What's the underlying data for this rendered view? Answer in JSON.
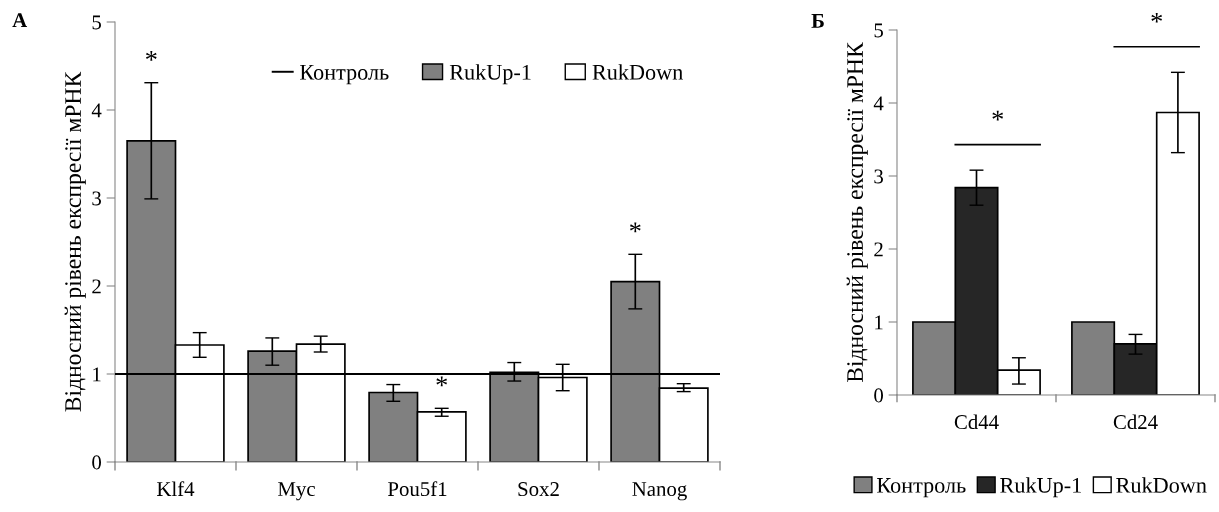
{
  "chart_data": [
    {
      "type": "bar",
      "title": "А",
      "ylabel": "Відносний рівень експресії мРНК",
      "categories": [
        "Klf4",
        "Myc",
        "Pou5f1",
        "Sox2",
        "Nanog"
      ],
      "series": [
        {
          "name": "RukUp-1",
          "color": "#808080",
          "values": [
            3.65,
            1.26,
            0.79,
            1.02,
            2.05
          ],
          "errors": [
            [
              2.99,
              4.31
            ],
            [
              1.1,
              1.41
            ],
            [
              0.69,
              0.88
            ],
            [
              0.92,
              1.13
            ],
            [
              1.74,
              2.36
            ]
          ]
        },
        {
          "name": "RukDown",
          "color": "#ffffff",
          "values": [
            1.33,
            1.34,
            0.57,
            0.96,
            0.84
          ],
          "errors": [
            [
              1.19,
              1.47
            ],
            [
              1.25,
              1.43
            ],
            [
              0.52,
              0.61
            ],
            [
              0.81,
              1.11
            ],
            [
              0.8,
              0.89
            ]
          ]
        }
      ],
      "ref_lines": [
        {
          "axis": "y",
          "value": 1,
          "label": "Контроль",
          "color": "#000000",
          "line_style": "solid"
        }
      ],
      "annotations": [
        "*",
        "*",
        "*"
      ],
      "ylim": [
        0,
        5
      ],
      "yticks": [
        0,
        1,
        2,
        3,
        4,
        5
      ],
      "grid": false,
      "legend": "top"
    },
    {
      "type": "bar",
      "title": "Б",
      "ylabel": "Відносний рівень експресії мРНК",
      "categories": [
        "Cd44",
        "Cd24"
      ],
      "series": [
        {
          "name": "Контроль",
          "color": "#808080",
          "values": [
            1,
            1
          ]
        },
        {
          "name": "RukUp-1",
          "color": "#262626",
          "values": [
            2.84,
            0.7
          ],
          "errors": [
            [
              2.6,
              3.08
            ],
            [
              0.56,
              0.83
            ]
          ]
        },
        {
          "name": "RukDown",
          "color": "#ffffff",
          "values": [
            0.34,
            3.87
          ],
          "errors": [
            [
              0.15,
              0.51
            ],
            [
              3.32,
              4.42
            ]
          ]
        }
      ],
      "annotations": [
        "*",
        "*"
      ],
      "ylim": [
        0,
        5
      ],
      "yticks": [
        0,
        1,
        2,
        3,
        4,
        5
      ],
      "grid": false,
      "legend": "bottom"
    }
  ]
}
